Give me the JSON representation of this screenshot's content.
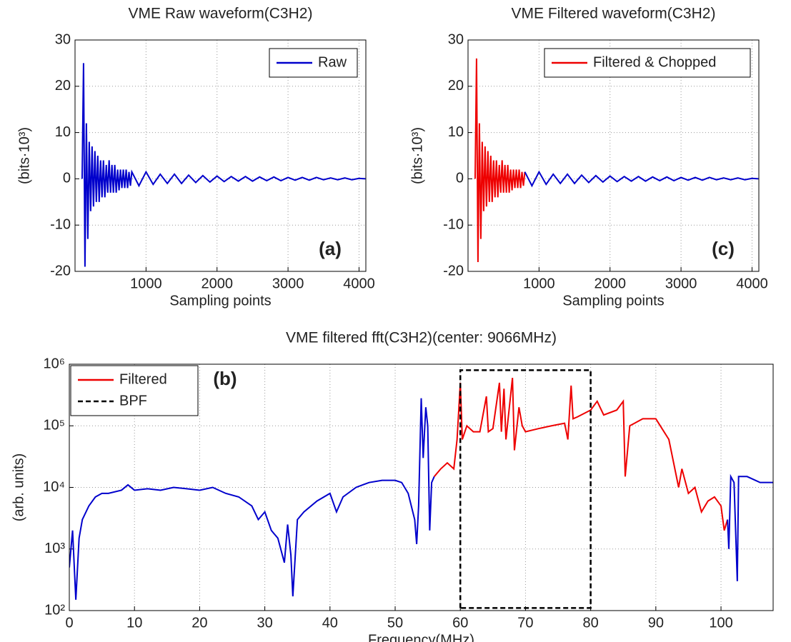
{
  "chart_data": [
    {
      "type": "line",
      "title": "VME Raw waveform(C3H2)",
      "xlabel": "Sampling points",
      "ylabel": "(bits·10³)",
      "annotation": "(a)",
      "legend": "upper right",
      "grid": true,
      "xlim": [
        0,
        4096
      ],
      "xticks": [
        1000,
        2000,
        3000,
        4000
      ],
      "ylim": [
        -20,
        30
      ],
      "yticks": [
        -20,
        -10,
        0,
        10,
        20,
        30
      ],
      "series": [
        {
          "name": "Raw",
          "color": "#0000cc",
          "x": [
            100,
            120,
            140,
            160,
            180,
            200,
            220,
            240,
            260,
            280,
            300,
            320,
            340,
            360,
            380,
            400,
            420,
            440,
            460,
            480,
            500,
            520,
            540,
            560,
            580,
            600,
            620,
            640,
            660,
            680,
            700,
            720,
            740,
            760,
            780,
            800,
            900,
            1000,
            1100,
            1200,
            1300,
            1400,
            1500,
            1600,
            1700,
            1800,
            1900,
            2000,
            2100,
            2200,
            2300,
            2400,
            2500,
            2600,
            2700,
            2800,
            2900,
            3000,
            3100,
            3200,
            3300,
            3400,
            3500,
            3600,
            3700,
            3800,
            3900,
            4000,
            4090
          ],
          "values": [
            0,
            25,
            -19,
            12,
            -13,
            8,
            -7,
            7,
            -6,
            6,
            -5,
            5,
            -5,
            4,
            -4,
            4,
            -4,
            3,
            -3,
            4,
            -3,
            3,
            -3,
            3,
            -3,
            2,
            -2.5,
            2,
            -2,
            2,
            -2,
            2,
            -2,
            1.5,
            -1.5,
            1.5,
            -1.5,
            1.5,
            -1.2,
            1,
            -1,
            1,
            -1,
            0.8,
            -0.8,
            0.7,
            -0.7,
            0.6,
            -0.6,
            0.5,
            -0.5,
            0.5,
            -0.5,
            0.4,
            -0.4,
            0.4,
            -0.4,
            0.3,
            -0.3,
            0.3,
            -0.3,
            0.3,
            -0.2,
            0.2,
            -0.2,
            0.2,
            -0.2,
            0.1,
            0
          ]
        }
      ]
    },
    {
      "type": "line",
      "title": "VME Filtered waveform(C3H2)",
      "xlabel": "Sampling points",
      "ylabel": "(bits·10³)",
      "annotation": "(c)",
      "legend": "upper right",
      "grid": true,
      "xlim": [
        0,
        4096
      ],
      "xticks": [
        1000,
        2000,
        3000,
        4000
      ],
      "ylim": [
        -20,
        30
      ],
      "yticks": [
        -20,
        -10,
        0,
        10,
        20,
        30
      ],
      "series": [
        {
          "name": "Filtered & Chopped",
          "color": "#ee0000",
          "x": [
            100,
            120,
            140,
            160,
            180,
            200,
            220,
            240,
            260,
            280,
            300,
            320,
            340,
            360,
            380,
            400,
            420,
            440,
            460,
            480,
            500,
            520,
            540,
            560,
            580,
            600,
            620,
            640,
            660,
            680,
            700,
            720,
            740,
            760,
            780,
            800
          ],
          "values": [
            0,
            26,
            -18,
            12,
            -13,
            8,
            -7,
            7,
            -6,
            6,
            -5,
            5,
            -5,
            4,
            -4,
            4,
            -4,
            3,
            -3,
            4,
            -3,
            3,
            -3,
            3,
            -3,
            2,
            -2.5,
            2,
            -2,
            2,
            -2,
            2,
            -2,
            1.5,
            -1.5,
            1.5
          ]
        },
        {
          "color": "#0000cc",
          "x": [
            800,
            900,
            1000,
            1100,
            1200,
            1300,
            1400,
            1500,
            1600,
            1700,
            1800,
            1900,
            2000,
            2100,
            2200,
            2300,
            2400,
            2500,
            2600,
            2700,
            2800,
            2900,
            3000,
            3100,
            3200,
            3300,
            3400,
            3500,
            3600,
            3700,
            3800,
            3900,
            4000,
            4090
          ],
          "values": [
            1.5,
            -1.5,
            1.5,
            -1.2,
            1,
            -1,
            1,
            -1,
            0.8,
            -0.8,
            0.7,
            -0.7,
            0.6,
            -0.6,
            0.5,
            -0.5,
            0.5,
            -0.5,
            0.4,
            -0.4,
            0.4,
            -0.4,
            0.3,
            -0.3,
            0.3,
            -0.3,
            0.3,
            -0.2,
            0.2,
            -0.2,
            0.2,
            -0.2,
            0.1,
            0
          ]
        }
      ]
    },
    {
      "type": "line",
      "title": "VME filtered fft(C3H2)(center: 9066MHz)",
      "xlabel": "Frequency(MHz)",
      "ylabel": "(arb. units)",
      "annotation": "(b)",
      "legend": "upper left",
      "grid": true,
      "ylog": true,
      "xlim": [
        0,
        108
      ],
      "xticks": [
        0,
        10,
        20,
        30,
        40,
        50,
        60,
        70,
        80,
        90,
        100
      ],
      "ylim": [
        100,
        1000000
      ],
      "yticks": [
        {
          "value": 100,
          "label": "10²"
        },
        {
          "value": 1000,
          "label": "10³"
        },
        {
          "value": 10000,
          "label": "10⁴"
        },
        {
          "value": 100000,
          "label": "10⁵"
        },
        {
          "value": 1000000,
          "label": "10⁶"
        }
      ],
      "series": [
        {
          "color": "#0000cc",
          "x": [
            0,
            0.5,
            1,
            1.5,
            2,
            3,
            4,
            5,
            6,
            8,
            9,
            10,
            12,
            14,
            16,
            18,
            20,
            22,
            24,
            26,
            28,
            29,
            30,
            31,
            32,
            33,
            33.5,
            34,
            34.3,
            35,
            36,
            38,
            40,
            41,
            42,
            44,
            46,
            48,
            50,
            51,
            52,
            53,
            53.3,
            53.6,
            54,
            54.3,
            54.7,
            55,
            55.3,
            55.6,
            56
          ],
          "values": [
            500,
            2000,
            150,
            1500,
            3000,
            5000,
            7000,
            8000,
            8000,
            9000,
            11000,
            9000,
            9500,
            9000,
            10000,
            9500,
            9000,
            10000,
            8000,
            7000,
            5000,
            3000,
            4000,
            2000,
            1500,
            600,
            2500,
            800,
            170,
            3000,
            4000,
            6000,
            8000,
            4000,
            7000,
            10000,
            12000,
            13000,
            13000,
            12000,
            8000,
            3000,
            1200,
            5000,
            280000,
            30000,
            200000,
            100000,
            2000,
            12000,
            15000
          ]
        },
        {
          "name": "Filtered",
          "color": "#ee0000",
          "x": [
            56,
            57,
            58,
            59,
            59.5,
            60,
            60.3,
            61,
            62,
            63,
            64,
            64.3,
            65,
            66,
            66.3,
            66.7,
            67,
            68,
            68.3,
            69,
            69.5,
            70,
            72,
            74,
            76,
            76.5,
            77,
            77.3,
            78,
            80,
            81,
            82,
            84,
            85,
            85.3,
            86,
            88,
            90,
            92,
            93.5,
            94,
            95,
            96,
            97,
            98,
            99,
            100,
            100.5,
            101
          ],
          "values": [
            15000,
            20000,
            25000,
            20000,
            60000,
            500000,
            60000,
            100000,
            80000,
            80000,
            300000,
            80000,
            90000,
            500000,
            80000,
            400000,
            60000,
            600000,
            40000,
            200000,
            100000,
            80000,
            90000,
            100000,
            110000,
            60000,
            450000,
            130000,
            140000,
            180000,
            250000,
            150000,
            180000,
            250000,
            15000,
            100000,
            130000,
            130000,
            60000,
            10000,
            20000,
            8000,
            10000,
            4000,
            6000,
            7000,
            5000,
            2000,
            3000
          ]
        },
        {
          "color": "#0000cc",
          "x": [
            101,
            101.2,
            101.5,
            102,
            102.5,
            102.7,
            104,
            106,
            108
          ],
          "values": [
            3000,
            1000,
            15000,
            12000,
            300,
            15000,
            15000,
            12000,
            12000
          ]
        },
        {
          "name": "BPF",
          "color": "#000000",
          "dashed": true,
          "x": [
            60,
            60,
            80,
            80,
            60
          ],
          "values": [
            110,
            800000,
            800000,
            110,
            110
          ]
        }
      ]
    }
  ]
}
